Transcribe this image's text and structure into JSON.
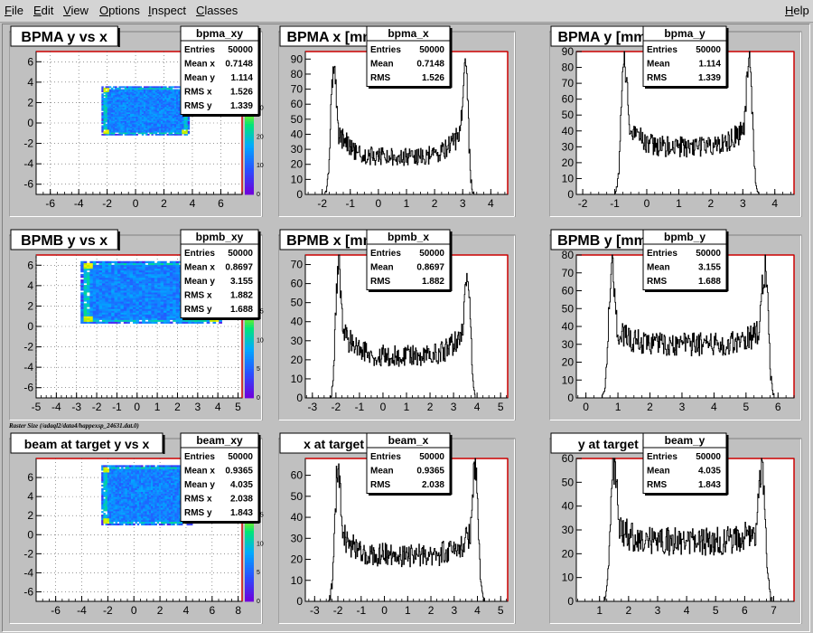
{
  "menu": {
    "items": [
      "File",
      "Edit",
      "View",
      "Options",
      "Inspect",
      "Classes"
    ],
    "help": "Help"
  },
  "caption": "Raster Size (/adaql2/data4/happexsp_24631.dat.0)",
  "chart_data": [
    {
      "type": "heatmap",
      "title": "BPMA y vs x",
      "stats": {
        "name": "bpma_xy",
        "rows": [
          [
            "Entries",
            "50000"
          ],
          [
            "Mean x",
            "0.7148"
          ],
          [
            "Mean y",
            "1.114"
          ],
          [
            "RMS x",
            "1.526"
          ],
          [
            "RMS y",
            "1.339"
          ]
        ]
      },
      "xlim": [
        -7,
        7.5
      ],
      "ylim": [
        -7,
        7
      ],
      "xticks": [
        -6,
        -4,
        -2,
        0,
        2,
        4,
        6
      ],
      "yticks": [
        -6,
        -4,
        -2,
        0,
        2,
        4,
        6
      ],
      "region": {
        "x": [
          -2.4,
          3.8
        ],
        "y": [
          -1.2,
          3.6
        ]
      },
      "colorbar_ticks": [
        "0",
        "10",
        "20",
        "30"
      ]
    },
    {
      "type": "bar",
      "title": "BPMA x [mm]",
      "stats": {
        "name": "bpma_x",
        "rows": [
          [
            "Entries",
            "50000"
          ],
          [
            "Mean",
            "0.7148"
          ],
          [
            "RMS",
            "1.526"
          ]
        ]
      },
      "xlim": [
        -2.6,
        4.6
      ],
      "ylim": [
        0,
        95
      ],
      "xticks": [
        -2,
        -1,
        0,
        1,
        2,
        3,
        4
      ],
      "yticks": [
        0,
        10,
        20,
        30,
        40,
        50,
        60,
        70,
        80,
        90
      ],
      "shape": {
        "lo": -1.6,
        "hi": 3.1,
        "edge": 0.3,
        "peak": 85,
        "base": 25
      }
    },
    {
      "type": "bar",
      "title": "BPMA y [mm]",
      "stats": {
        "name": "bpma_y",
        "rows": [
          [
            "Entries",
            "50000"
          ],
          [
            "Mean",
            "1.114"
          ],
          [
            "RMS",
            "1.339"
          ]
        ]
      },
      "xlim": [
        -2.2,
        4.6
      ],
      "ylim": [
        0,
        90
      ],
      "xticks": [
        -2,
        -1,
        0,
        1,
        2,
        3,
        4
      ],
      "yticks": [
        0,
        10,
        20,
        30,
        40,
        50,
        60,
        70,
        80,
        90
      ],
      "shape": {
        "lo": -0.7,
        "hi": 3.2,
        "edge": 0.3,
        "peak": 85,
        "base": 30
      }
    },
    {
      "type": "heatmap",
      "title": "BPMB y vs x",
      "stats": {
        "name": "bpmb_xy",
        "rows": [
          [
            "Entries",
            "50000"
          ],
          [
            "Mean x",
            "0.8697"
          ],
          [
            "Mean y",
            "3.155"
          ],
          [
            "RMS x",
            "1.882"
          ],
          [
            "RMS y",
            "1.688"
          ]
        ]
      },
      "xlim": [
        -5,
        5.2
      ],
      "ylim": [
        -7,
        7
      ],
      "xticks": [
        -5,
        -4,
        -3,
        -2,
        -1,
        0,
        1,
        2,
        3,
        4,
        5
      ],
      "yticks": [
        -6,
        -4,
        -2,
        0,
        2,
        4,
        6
      ],
      "region": {
        "x": [
          -2.8,
          4.2
        ],
        "y": [
          0.3,
          6.4
        ]
      },
      "colorbar_ticks": [
        "0",
        "5",
        "10",
        "15"
      ]
    },
    {
      "type": "bar",
      "title": "BPMB x [mm]",
      "stats": {
        "name": "bpmb_x",
        "rows": [
          [
            "Entries",
            "50000"
          ],
          [
            "Mean",
            "0.8697"
          ],
          [
            "RMS",
            "1.882"
          ]
        ]
      },
      "xlim": [
        -3.3,
        5.3
      ],
      "ylim": [
        0,
        75
      ],
      "xticks": [
        -3,
        -2,
        -1,
        0,
        1,
        2,
        3,
        4,
        5
      ],
      "yticks": [
        0,
        10,
        20,
        30,
        40,
        50,
        60,
        70
      ],
      "shape": {
        "lo": -1.9,
        "hi": 3.6,
        "edge": 0.35,
        "peak": 70,
        "base": 22
      }
    },
    {
      "type": "bar",
      "title": "BPMB y [mm]",
      "stats": {
        "name": "bpmb_y",
        "rows": [
          [
            "Entries",
            "50000"
          ],
          [
            "Mean",
            "3.155"
          ],
          [
            "RMS",
            "1.688"
          ]
        ]
      },
      "xlim": [
        -0.3,
        6.5
      ],
      "ylim": [
        0,
        80
      ],
      "xticks": [
        0,
        1,
        2,
        3,
        4,
        5,
        6
      ],
      "yticks": [
        0,
        10,
        20,
        30,
        40,
        50,
        60,
        70,
        80
      ],
      "shape": {
        "lo": 0.8,
        "hi": 5.6,
        "edge": 0.3,
        "peak": 72,
        "base": 30
      }
    },
    {
      "type": "heatmap",
      "title": "beam at target y vs x",
      "stats": {
        "name": "beam_xy",
        "rows": [
          [
            "Entries",
            "50000"
          ],
          [
            "Mean x",
            "0.9365"
          ],
          [
            "Mean y",
            "4.035"
          ],
          [
            "RMS x",
            "2.038"
          ],
          [
            "RMS y",
            "1.843"
          ]
        ]
      },
      "xlim": [
        -7.5,
        8.3
      ],
      "ylim": [
        -7,
        8
      ],
      "xticks": [
        -6,
        -4,
        -2,
        0,
        2,
        4,
        6,
        8
      ],
      "yticks": [
        -6,
        -4,
        -2,
        0,
        2,
        4,
        6
      ],
      "region": {
        "x": [
          -2.5,
          4.5
        ],
        "y": [
          1,
          7.3
        ]
      },
      "colorbar_ticks": [
        "0",
        "5",
        "10",
        "15"
      ]
    },
    {
      "type": "bar",
      "title": "x at target [mm]",
      "stats": {
        "name": "beam_x",
        "rows": [
          [
            "Entries",
            "50000"
          ],
          [
            "Mean",
            "0.9365"
          ],
          [
            "RMS",
            "2.038"
          ]
        ]
      },
      "xlim": [
        -3.4,
        5.3
      ],
      "ylim": [
        0,
        68
      ],
      "xticks": [
        -3,
        -2,
        -1,
        0,
        1,
        2,
        3,
        4,
        5
      ],
      "yticks": [
        0,
        10,
        20,
        30,
        40,
        50,
        60
      ],
      "shape": {
        "lo": -2.0,
        "hi": 3.9,
        "edge": 0.4,
        "peak": 62,
        "base": 22
      }
    },
    {
      "type": "bar",
      "title": "y at target [mm]",
      "stats": {
        "name": "beam_y",
        "rows": [
          [
            "Entries",
            "50000"
          ],
          [
            "Mean",
            "4.035"
          ],
          [
            "RMS",
            "1.843"
          ]
        ]
      },
      "xlim": [
        0.2,
        7.7
      ],
      "ylim": [
        0,
        60
      ],
      "xticks": [
        1,
        2,
        3,
        4,
        5,
        6,
        7
      ],
      "yticks": [
        0,
        10,
        20,
        30,
        40,
        50,
        60
      ],
      "shape": {
        "lo": 1.5,
        "hi": 6.6,
        "edge": 0.35,
        "peak": 58,
        "base": 25
      }
    }
  ]
}
